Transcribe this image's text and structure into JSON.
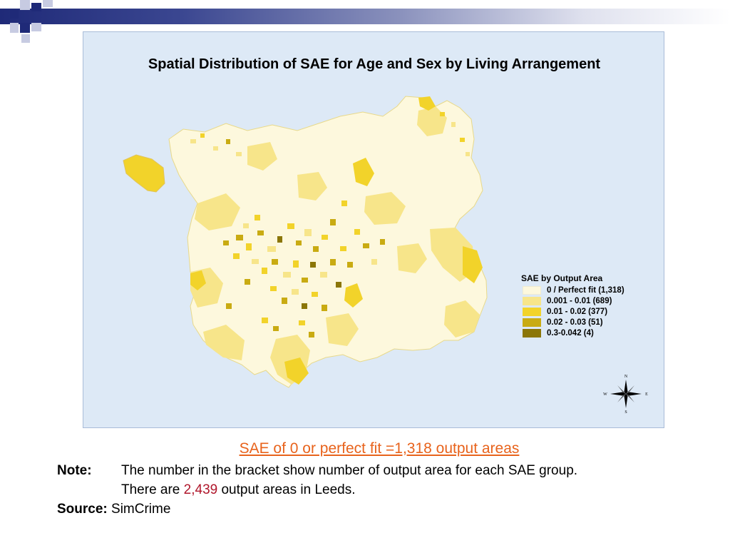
{
  "slide": {
    "title": "Spatial Distribution of SAE for Age and Sex by Living Arrangement",
    "caption": "SAE of 0 or perfect fit =1,318 output areas",
    "note_label": "Note:",
    "note_line1": "The number in the bracket show number of output area for each SAE group.",
    "note_line2_prefix": "There are ",
    "note_line2_value": "2,439",
    "note_line2_suffix": " output areas in Leeds.",
    "source_label": "Source:",
    "source_value": "SimCrime"
  },
  "legend": {
    "title": "SAE by Output Area",
    "items": [
      {
        "label": "0 / Perfect fit (1,318)",
        "color": "#fdf8dd"
      },
      {
        "label": "0.001 - 0.01 (689)",
        "color": "#f7e58a"
      },
      {
        "label": "0.01 - 0.02 (377)",
        "color": "#f2d32a"
      },
      {
        "label": "0.02 - 0.03 (51)",
        "color": "#c9ab12"
      },
      {
        "label": "0.3-0.042 (4)",
        "color": "#8b7608"
      }
    ]
  },
  "compass": {
    "n": "N",
    "s": "S",
    "e": "E",
    "w": "W"
  },
  "colors": {
    "sea": "#dde9f6",
    "land_base": "#fdf8dd"
  }
}
